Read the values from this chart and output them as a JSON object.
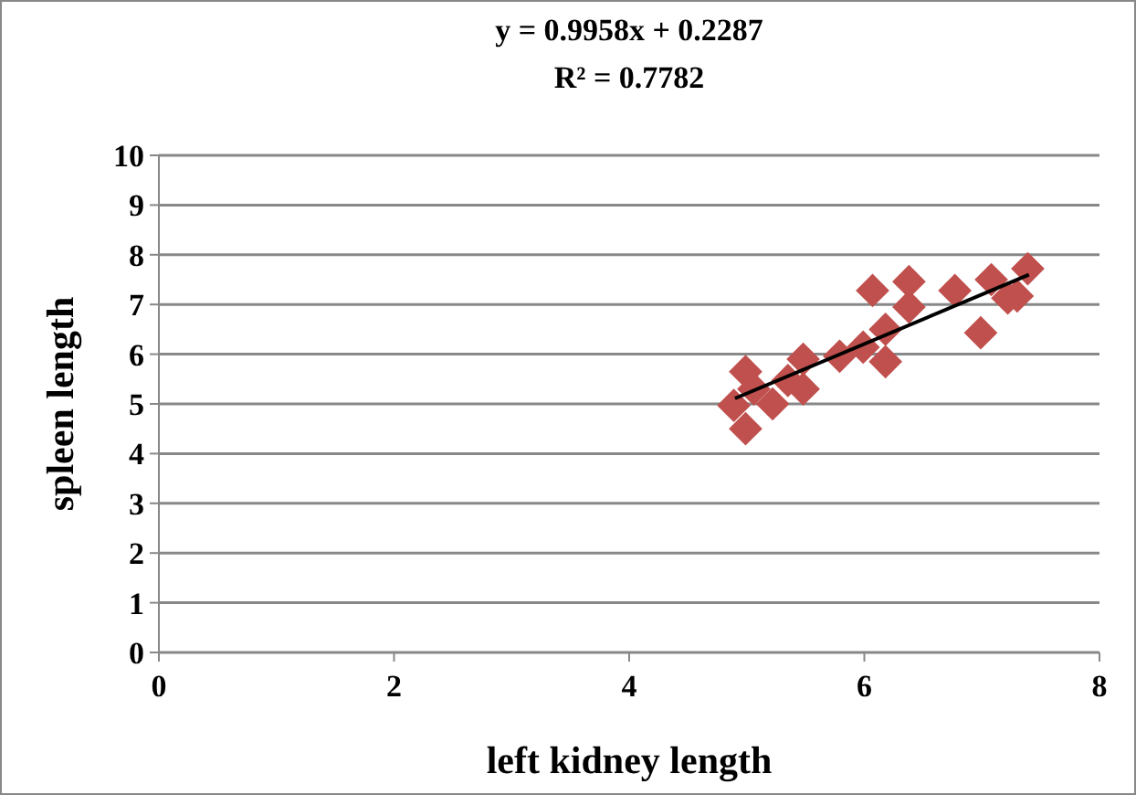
{
  "chart_data": {
    "type": "scatter",
    "title": "y = 0.9958x + 0.2287",
    "subtitle": "R² = 0.7782",
    "xlabel": "left kidney length",
    "ylabel": "spleen length",
    "xlim": [
      0,
      8
    ],
    "xticks": [
      0,
      2,
      4,
      6,
      8
    ],
    "ylim": [
      0,
      10
    ],
    "yticks": [
      0,
      1,
      2,
      3,
      4,
      5,
      6,
      7,
      8,
      9,
      10
    ],
    "grid": "y",
    "marker": "diamond",
    "series": [
      {
        "color": "#c0504d",
        "x": [
          4.99,
          4.89,
          4.99,
          5.06,
          5.22,
          5.35,
          5.48,
          5.48,
          5.79,
          5.99,
          6.18,
          6.18,
          6.07,
          6.38,
          6.38,
          6.77,
          6.99,
          7.08,
          7.22,
          7.3,
          7.39
        ],
        "values": [
          5.65,
          4.97,
          4.5,
          5.3,
          5.0,
          5.47,
          5.9,
          5.3,
          5.96,
          6.14,
          6.5,
          5.85,
          7.28,
          7.46,
          6.95,
          7.28,
          6.43,
          7.5,
          7.13,
          7.17,
          7.72
        ]
      },
      {
        "type": "line",
        "color": "#000000",
        "marker": "none",
        "line_style": "solid",
        "x": [
          4.9,
          7.4
        ],
        "values": [
          5.11,
          7.6
        ]
      }
    ]
  }
}
